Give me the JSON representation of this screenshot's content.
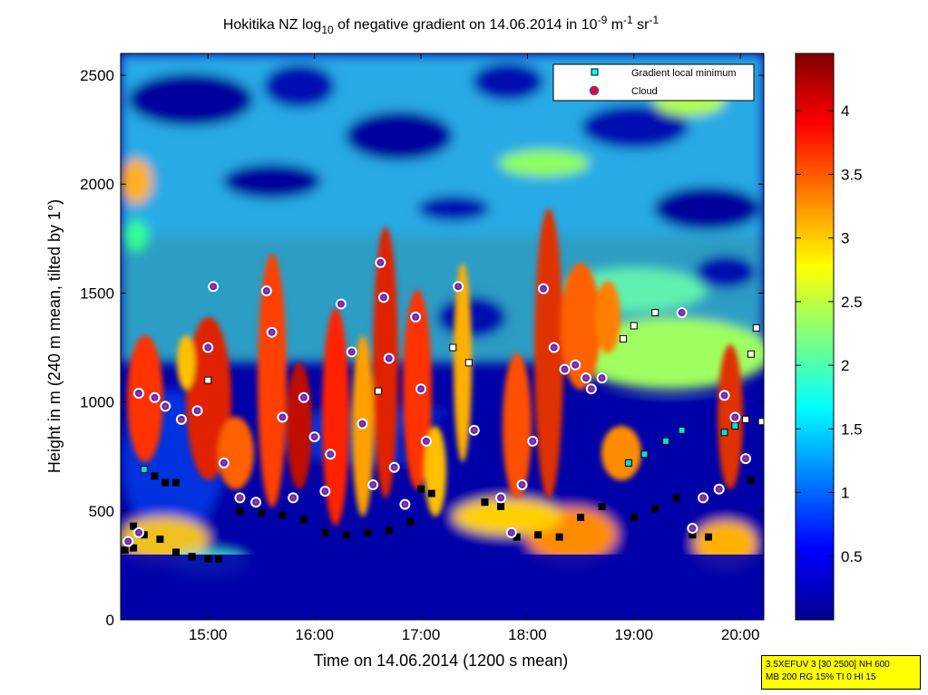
{
  "chart_data": {
    "type": "heatmap",
    "title": {
      "prefix": "Hokitika NZ log",
      "log_base": "10",
      "middle": " of negative gradient on 14.06.2014 in 10",
      "exp1": "-9",
      "unit1": " m",
      "exp2": "-1",
      "unit2": " sr",
      "exp3": "-1"
    },
    "xlabel": "Time on 14.06.2014 (1200 s mean)",
    "ylabel": "Height in m (240 m mean, tilted by 1°)",
    "x_ticks": [
      "15:00",
      "16:00",
      "17:00",
      "18:00",
      "19:00",
      "20:00"
    ],
    "x_tick_hours": [
      15,
      16,
      17,
      18,
      19,
      20
    ],
    "x_range_hours": [
      14.18,
      20.22
    ],
    "y_ticks": [
      "0",
      "500",
      "1000",
      "1500",
      "2000",
      "2500"
    ],
    "y_tick_values": [
      0,
      500,
      1000,
      1500,
      2000,
      2500
    ],
    "ylim": [
      0,
      2600
    ],
    "colorbar": {
      "ticks": [
        "0.5",
        "1",
        "1.5",
        "2",
        "2.5",
        "3",
        "3.5",
        "4"
      ],
      "tick_values": [
        0.5,
        1,
        1.5,
        2,
        2.5,
        3,
        3.5,
        4
      ],
      "range": [
        0,
        4.45
      ],
      "colormap": "jet"
    },
    "legend": {
      "placement": "top-right",
      "entries": [
        {
          "label": "Gradient local minimum",
          "marker": "square",
          "color": "#00ffff"
        },
        {
          "label": "Cloud",
          "marker": "circle",
          "color": "#ff0000"
        }
      ]
    },
    "series": [
      {
        "name": "Gradient local minimum",
        "points": [
          [
            14.22,
            320
          ],
          [
            14.3,
            330
          ],
          [
            14.4,
            690
          ],
          [
            14.5,
            660
          ],
          [
            14.6,
            630
          ],
          [
            14.7,
            630
          ],
          [
            14.3,
            430
          ],
          [
            14.4,
            390
          ],
          [
            14.55,
            370
          ],
          [
            14.7,
            310
          ],
          [
            14.85,
            290
          ],
          [
            15.0,
            280
          ],
          [
            15.1,
            280
          ],
          [
            15.3,
            500
          ],
          [
            15.5,
            490
          ],
          [
            15.7,
            480
          ],
          [
            15.9,
            460
          ],
          [
            16.1,
            400
          ],
          [
            16.3,
            390
          ],
          [
            16.5,
            400
          ],
          [
            16.7,
            410
          ],
          [
            16.9,
            450
          ],
          [
            17.0,
            600
          ],
          [
            17.1,
            580
          ],
          [
            17.3,
            1250
          ],
          [
            17.45,
            1180
          ],
          [
            17.6,
            540
          ],
          [
            17.75,
            520
          ],
          [
            17.9,
            380
          ],
          [
            18.1,
            390
          ],
          [
            18.3,
            380
          ],
          [
            18.5,
            470
          ],
          [
            18.7,
            520
          ],
          [
            18.9,
            1290
          ],
          [
            19.0,
            1350
          ],
          [
            19.2,
            1410
          ],
          [
            18.95,
            720
          ],
          [
            19.1,
            760
          ],
          [
            19.3,
            820
          ],
          [
            19.45,
            870
          ],
          [
            19.0,
            470
          ],
          [
            19.2,
            510
          ],
          [
            19.4,
            560
          ],
          [
            19.55,
            390
          ],
          [
            19.7,
            380
          ],
          [
            19.85,
            860
          ],
          [
            19.95,
            890
          ],
          [
            20.05,
            920
          ],
          [
            20.1,
            1220
          ],
          [
            20.15,
            1340
          ],
          [
            20.1,
            640
          ],
          [
            20.2,
            910
          ],
          [
            16.6,
            1050
          ],
          [
            15.0,
            1100
          ]
        ]
      },
      {
        "name": "Cloud",
        "points": [
          [
            14.25,
            360
          ],
          [
            14.35,
            400
          ],
          [
            14.35,
            1040
          ],
          [
            14.5,
            1020
          ],
          [
            14.6,
            980
          ],
          [
            14.75,
            920
          ],
          [
            14.9,
            960
          ],
          [
            15.0,
            1250
          ],
          [
            15.05,
            1530
          ],
          [
            15.15,
            720
          ],
          [
            15.3,
            560
          ],
          [
            15.45,
            540
          ],
          [
            15.55,
            1510
          ],
          [
            15.6,
            1320
          ],
          [
            15.7,
            930
          ],
          [
            15.8,
            560
          ],
          [
            15.9,
            1020
          ],
          [
            16.0,
            840
          ],
          [
            16.1,
            590
          ],
          [
            16.15,
            760
          ],
          [
            16.25,
            1450
          ],
          [
            16.35,
            1230
          ],
          [
            16.45,
            900
          ],
          [
            16.55,
            620
          ],
          [
            16.62,
            1640
          ],
          [
            16.65,
            1480
          ],
          [
            16.7,
            1200
          ],
          [
            16.75,
            700
          ],
          [
            16.85,
            530
          ],
          [
            16.95,
            1390
          ],
          [
            17.0,
            1060
          ],
          [
            17.05,
            820
          ],
          [
            17.35,
            1530
          ],
          [
            17.5,
            870
          ],
          [
            17.75,
            560
          ],
          [
            17.85,
            400
          ],
          [
            17.95,
            620
          ],
          [
            18.05,
            820
          ],
          [
            18.15,
            1520
          ],
          [
            18.25,
            1250
          ],
          [
            18.35,
            1150
          ],
          [
            18.45,
            1170
          ],
          [
            18.55,
            1110
          ],
          [
            18.6,
            1060
          ],
          [
            18.7,
            1110
          ],
          [
            19.45,
            1410
          ],
          [
            19.55,
            420
          ],
          [
            19.65,
            560
          ],
          [
            19.8,
            600
          ],
          [
            19.85,
            1030
          ],
          [
            19.95,
            930
          ],
          [
            20.05,
            740
          ]
        ]
      }
    ]
  },
  "info_box": {
    "line1": "3.5XEFUV 3 [30 2500] NH 600",
    "line2": "MB 200 RG 15% TI 0 HI 15"
  }
}
